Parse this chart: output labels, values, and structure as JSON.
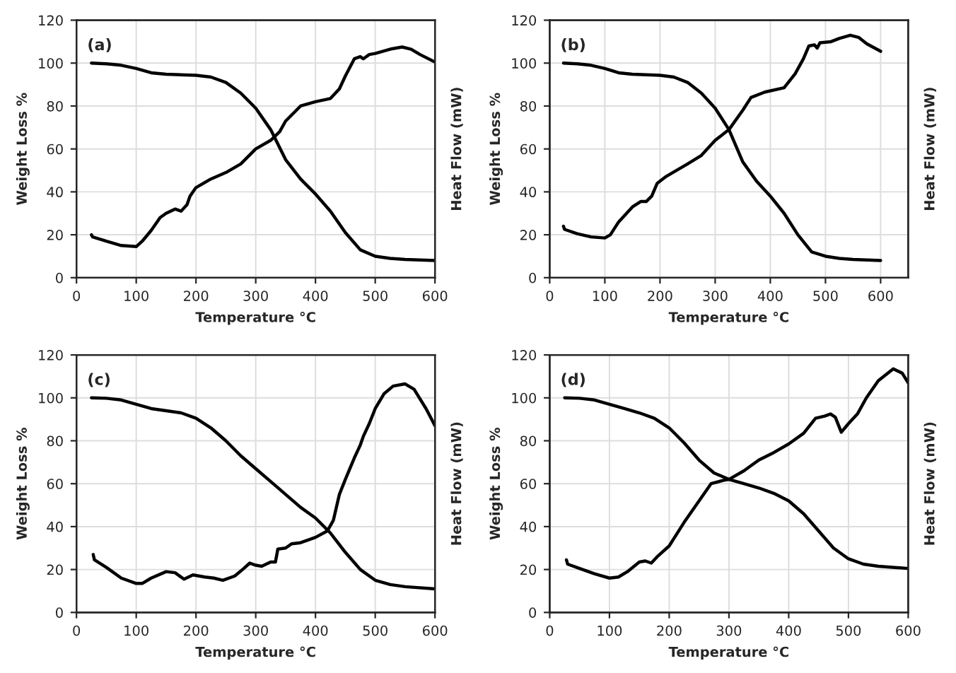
{
  "chart_data": [
    {
      "type": "line",
      "xlabel": "Temperature °C",
      "ylabel": "Weight Loss %",
      "y2label": "Heat Flow (mW)",
      "annotations": [
        "(a)"
      ],
      "xlim": [
        0,
        600
      ],
      "xticks": [
        0,
        100,
        200,
        300,
        400,
        500,
        600
      ],
      "ylim": [
        0,
        120
      ],
      "yticks": [
        0,
        20,
        40,
        60,
        80,
        100,
        120
      ],
      "grid": true,
      "series": [
        {
          "color": "#000000",
          "x": [
            25,
            50,
            75,
            100,
            125,
            150,
            200,
            225,
            250,
            275,
            300,
            325,
            350,
            375,
            400,
            425,
            450,
            475,
            500,
            525,
            550,
            600
          ],
          "values": [
            100,
            99.7,
            99,
            97.5,
            95.5,
            94.8,
            94.3,
            93.5,
            91,
            86,
            79,
            69,
            55,
            46,
            39,
            31,
            21,
            13,
            10,
            9,
            8.5,
            8
          ]
        },
        {
          "color": "#000000",
          "x": [
            25,
            27,
            50,
            75,
            100,
            110,
            125,
            140,
            150,
            165,
            175,
            185,
            190,
            200,
            225,
            250,
            275,
            300,
            325,
            340,
            350,
            375,
            400,
            425,
            440,
            450,
            465,
            475,
            480,
            490,
            500,
            525,
            545,
            560,
            575,
            600
          ],
          "values": [
            20,
            19,
            17,
            15,
            14.5,
            17,
            22,
            28,
            30,
            32,
            31,
            34,
            38,
            42,
            46,
            49,
            53,
            60,
            64,
            68,
            73,
            80,
            82,
            83.5,
            88,
            94,
            102,
            103,
            102,
            104,
            104.5,
            106.5,
            107.5,
            106.5,
            104,
            100.5
          ]
        }
      ]
    },
    {
      "type": "line",
      "xlabel": "Temperature °C",
      "ylabel": "Weight Loss %",
      "y2label": "Heat Flow (mW)",
      "annotations": [
        "(b)"
      ],
      "xlim": [
        0,
        650
      ],
      "xticks": [
        0,
        100,
        200,
        300,
        400,
        500,
        600
      ],
      "ylim": [
        0,
        120
      ],
      "yticks": [
        0,
        20,
        40,
        60,
        80,
        100,
        120
      ],
      "grid": true,
      "series": [
        {
          "color": "#000000",
          "x": [
            25,
            50,
            75,
            100,
            125,
            150,
            200,
            225,
            250,
            275,
            300,
            325,
            350,
            375,
            400,
            425,
            450,
            475,
            500,
            525,
            550,
            600
          ],
          "values": [
            100,
            99.7,
            99,
            97.5,
            95.5,
            94.8,
            94.3,
            93.5,
            91,
            86,
            79,
            69,
            54,
            45,
            38,
            30,
            20,
            12,
            10,
            9,
            8.5,
            8
          ]
        },
        {
          "color": "#000000",
          "x": [
            25,
            27,
            50,
            75,
            100,
            110,
            125,
            150,
            165,
            175,
            185,
            195,
            210,
            250,
            275,
            300,
            325,
            350,
            365,
            390,
            425,
            445,
            460,
            470,
            480,
            485,
            490,
            510,
            525,
            545,
            560,
            575,
            600
          ],
          "values": [
            24,
            22.5,
            20.5,
            19,
            18.5,
            20,
            26,
            33,
            35.5,
            35.5,
            38,
            44,
            47,
            53,
            57,
            64,
            69,
            78,
            84,
            86.5,
            88.5,
            95,
            102,
            108,
            108.5,
            107,
            109.5,
            110,
            111.5,
            113,
            112,
            109,
            105.5
          ]
        }
      ]
    },
    {
      "type": "line",
      "xlabel": "Temperature °C",
      "ylabel": "Weight Loss %",
      "y2label": "Heat Flow (mW)",
      "annotations": [
        "(c)"
      ],
      "xlim": [
        0,
        600
      ],
      "xticks": [
        0,
        100,
        200,
        300,
        400,
        500,
        600
      ],
      "ylim": [
        0,
        120
      ],
      "yticks": [
        0,
        20,
        40,
        60,
        80,
        100,
        120
      ],
      "grid": true,
      "series": [
        {
          "color": "#000000",
          "x": [
            25,
            50,
            75,
            100,
            125,
            150,
            175,
            200,
            225,
            250,
            275,
            300,
            325,
            350,
            375,
            400,
            425,
            450,
            475,
            500,
            525,
            550,
            600
          ],
          "values": [
            100,
            99.8,
            99,
            97,
            95,
            94,
            93,
            90.5,
            86,
            80,
            73,
            67,
            61,
            55,
            49,
            44,
            37,
            28,
            20,
            15,
            13,
            12,
            11
          ]
        },
        {
          "color": "#000000",
          "x": [
            28,
            30,
            50,
            75,
            100,
            110,
            125,
            150,
            165,
            180,
            195,
            215,
            230,
            245,
            265,
            280,
            290,
            300,
            310,
            325,
            333,
            337,
            350,
            360,
            375,
            400,
            420,
            430,
            440,
            450,
            465,
            475,
            480,
            490,
            500,
            515,
            530,
            550,
            565,
            585,
            600
          ],
          "values": [
            27,
            24.5,
            21,
            16,
            13.5,
            13.5,
            16,
            19,
            18.5,
            15.5,
            17.5,
            16.5,
            16,
            15,
            17,
            20.5,
            23,
            22,
            21.5,
            23.5,
            23.5,
            29.5,
            30,
            32,
            32.5,
            35,
            38,
            43,
            55,
            62,
            72,
            78,
            82,
            88,
            95,
            102,
            105.5,
            106.5,
            104,
            95,
            87
          ]
        }
      ]
    },
    {
      "type": "line",
      "xlabel": "Temperature °C",
      "ylabel": "Weight Loss %",
      "y2label": "Heat Flow (mW)",
      "annotations": [
        "(d)"
      ],
      "xlim": [
        0,
        600
      ],
      "xticks": [
        0,
        100,
        200,
        300,
        400,
        500,
        600
      ],
      "ylim": [
        0,
        120
      ],
      "yticks": [
        0,
        20,
        40,
        60,
        80,
        100,
        120
      ],
      "grid": true,
      "series": [
        {
          "color": "#000000",
          "x": [
            25,
            50,
            75,
            100,
            125,
            150,
            175,
            200,
            225,
            250,
            275,
            300,
            325,
            350,
            375,
            400,
            425,
            450,
            475,
            500,
            525,
            550,
            600
          ],
          "values": [
            100,
            99.8,
            99,
            97,
            95,
            93,
            90.5,
            86,
            79,
            71,
            65,
            62,
            60,
            58,
            55.5,
            52,
            46,
            38,
            30,
            25,
            22.5,
            21.5,
            20.5
          ]
        },
        {
          "color": "#000000",
          "x": [
            28,
            30,
            50,
            75,
            100,
            115,
            130,
            150,
            160,
            170,
            180,
            200,
            225,
            250,
            270,
            290,
            300,
            325,
            350,
            375,
            400,
            425,
            445,
            460,
            470,
            478,
            488,
            500,
            515,
            530,
            550,
            575,
            590,
            600
          ],
          "values": [
            24.5,
            22.5,
            20.5,
            18,
            16,
            16.5,
            19,
            23.5,
            24,
            23,
            26,
            31,
            42,
            52,
            60,
            61.5,
            62,
            66,
            71,
            74.5,
            78.5,
            83.5,
            90.5,
            91.5,
            92.5,
            91,
            84,
            88,
            92.5,
            100,
            108,
            113.5,
            111.5,
            107
          ]
        }
      ]
    }
  ]
}
